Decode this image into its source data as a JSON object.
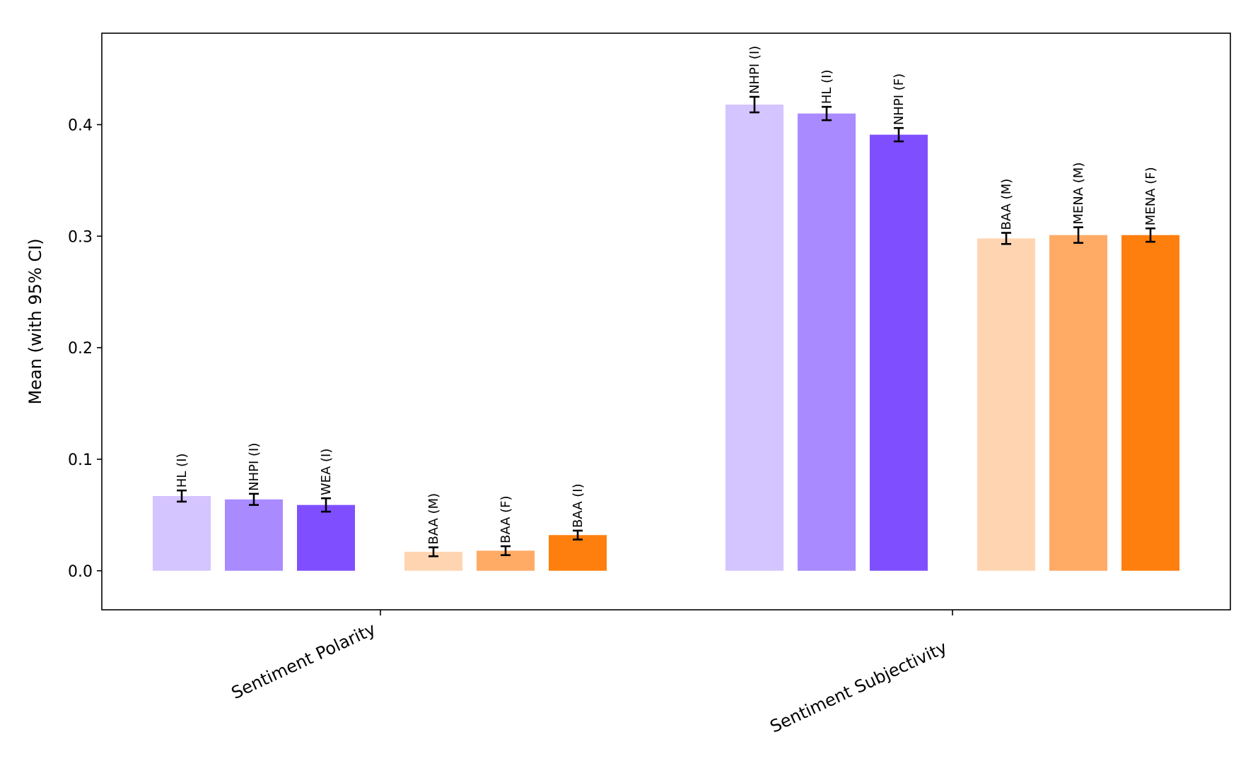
{
  "chart_data": {
    "type": "bar",
    "title": "",
    "xlabel": "",
    "ylabel": "Mean (with 95% CI)",
    "ylim": [
      -0.035,
      0.482
    ],
    "yticks": [
      0.0,
      0.1,
      0.2,
      0.3,
      0.4
    ],
    "ytick_labels": [
      "0.0",
      "0.1",
      "0.2",
      "0.3",
      "0.4"
    ],
    "grid": false,
    "categories": [
      "Sentiment Polarity",
      "Sentiment Subjectivity"
    ],
    "groups": [
      {
        "category": "Sentiment Polarity",
        "bars": [
          {
            "label": "HL (I)",
            "value": 0.067,
            "ci": 0.005,
            "color": "#d4c4ff"
          },
          {
            "label": "NHPI (I)",
            "value": 0.064,
            "ci": 0.005,
            "color": "#a98bff"
          },
          {
            "label": "WEA (I)",
            "value": 0.059,
            "ci": 0.006,
            "color": "#7f4fff"
          },
          {
            "label": "BAA (M)",
            "value": 0.017,
            "ci": 0.004,
            "color": "#ffd5b1"
          },
          {
            "label": "BAA (F)",
            "value": 0.018,
            "ci": 0.004,
            "color": "#ffab65"
          },
          {
            "label": "BAA (I)",
            "value": 0.032,
            "ci": 0.004,
            "color": "#ff7f0e"
          }
        ]
      },
      {
        "category": "Sentiment Subjectivity",
        "bars": [
          {
            "label": "NHPI (I)",
            "value": 0.418,
            "ci": 0.007,
            "color": "#d4c4ff"
          },
          {
            "label": "HL (I)",
            "value": 0.41,
            "ci": 0.006,
            "color": "#a98bff"
          },
          {
            "label": "NHPI (F)",
            "value": 0.391,
            "ci": 0.006,
            "color": "#7f4fff"
          },
          {
            "label": "BAA (M)",
            "value": 0.298,
            "ci": 0.005,
            "color": "#ffd5b1"
          },
          {
            "label": "MENA (M)",
            "value": 0.301,
            "ci": 0.007,
            "color": "#ffab65"
          },
          {
            "label": "MENA (F)",
            "value": 0.301,
            "ci": 0.006,
            "color": "#ff7f0e"
          }
        ]
      }
    ]
  }
}
